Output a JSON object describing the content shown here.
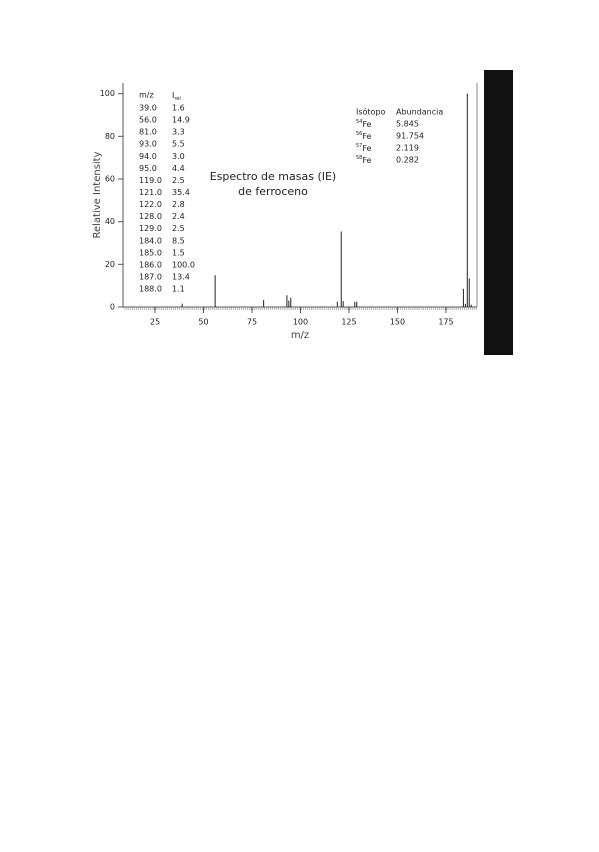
{
  "chart_data": {
    "type": "stem",
    "x_label": "m/z",
    "y_label": "Relative Intensity",
    "annotation": [
      "Espectro de masas (IE)",
      "de ferroceno"
    ],
    "x": [
      39,
      56,
      81,
      93,
      94,
      95,
      119,
      121,
      122,
      128,
      129,
      184,
      185,
      186,
      187,
      188
    ],
    "x_labels": [
      "39.0",
      "56.0",
      "81.0",
      "93.0",
      "94.0",
      "95.0",
      "119.0",
      "121.0",
      "122.0",
      "128.0",
      "129.0",
      "184.0",
      "185.0",
      "186.0",
      "187.0",
      "188.0"
    ],
    "values": [
      1.6,
      14.9,
      3.3,
      5.5,
      3.0,
      4.4,
      2.5,
      35.4,
      2.8,
      2.4,
      2.5,
      8.5,
      1.5,
      100.0,
      13.4,
      1.1
    ],
    "value_labels": [
      "1.6",
      "14.9",
      "3.3",
      "5.5",
      "3.0",
      "4.4",
      "2.5",
      "35.4",
      "2.8",
      "2.4",
      "2.5",
      "8.5",
      "1.5",
      "100.0",
      "13.4",
      "1.1"
    ],
    "color": "#222222",
    "xlim": [
      8.5,
      191
    ],
    "xticks": [
      25,
      50,
      75,
      100,
      125,
      150,
      175
    ],
    "ylim": [
      0,
      105
    ],
    "yticks": [
      0,
      20,
      40,
      60,
      80,
      100
    ],
    "table_headers": [
      "m/z",
      {
        "text": "I",
        "sub": "rel"
      }
    ],
    "isotopes": {
      "headers": [
        "Isótopo",
        "Abundancia"
      ],
      "rows": [
        {
          "mass": "54",
          "el": "Fe",
          "abundance": "5.845"
        },
        {
          "mass": "56",
          "el": "Fe",
          "abundance": "91.754"
        },
        {
          "mass": "57",
          "el": "Fe",
          "abundance": "2.119"
        },
        {
          "mass": "58",
          "el": "Fe",
          "abundance": "0.282"
        }
      ]
    }
  }
}
